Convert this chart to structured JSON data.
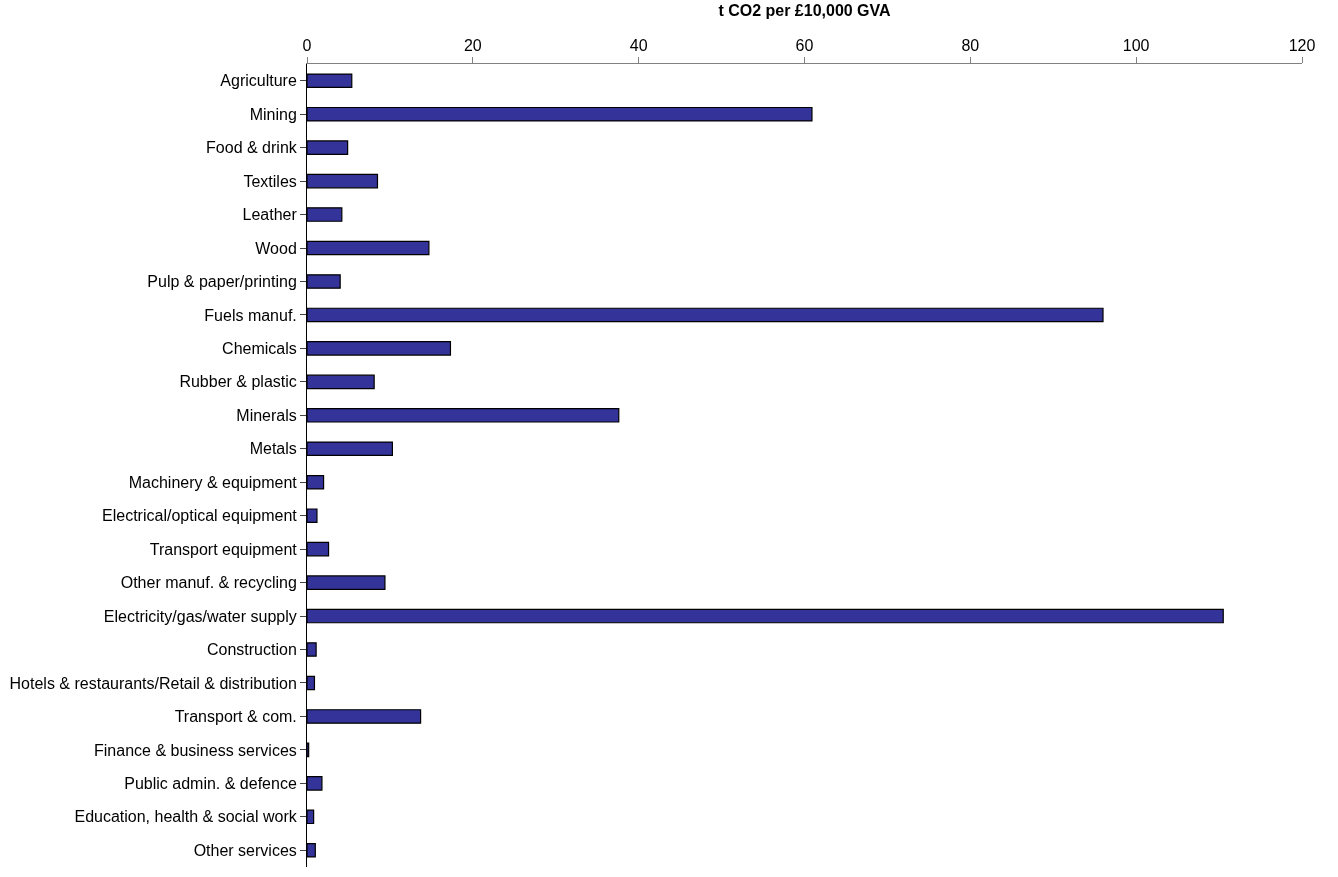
{
  "chart_data": {
    "type": "bar",
    "orientation": "horizontal",
    "xlabel": "t CO2 per £10,000 GVA",
    "categories": [
      "Agriculture",
      "Mining",
      "Food & drink",
      "Textiles",
      "Leather",
      "Wood",
      "Pulp & paper/printing",
      "Fuels manuf.",
      "Chemicals",
      "Rubber & plastic",
      "Minerals",
      "Metals",
      "Machinery & equipment",
      "Electrical/optical equipment",
      "Transport equipment",
      "Other manuf. & recycling",
      "Electricity/gas/water supply",
      "Construction",
      "Hotels & restaurants/Retail & distribution",
      "Transport & com.",
      "Finance & business services",
      "Public admin. & defence",
      "Education, health & social work",
      "Other services"
    ],
    "values": [
      5.4,
      60.9,
      4.9,
      8.5,
      4.2,
      14.7,
      4.0,
      96.0,
      17.3,
      8.1,
      37.6,
      10.3,
      2.0,
      1.2,
      2.6,
      9.4,
      110.5,
      1.1,
      0.9,
      13.7,
      0.2,
      1.8,
      0.8,
      1.0
    ],
    "color": "#333399",
    "xlim": [
      0,
      120
    ],
    "xticks": [
      0,
      20,
      40,
      60,
      80,
      100,
      120
    ]
  }
}
